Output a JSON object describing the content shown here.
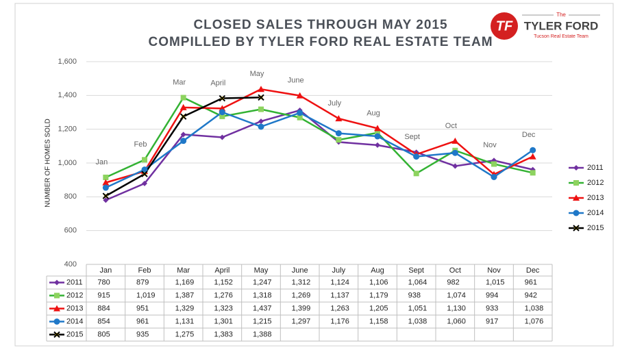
{
  "chart_data": {
    "type": "line",
    "title": "CLOSED SALES THROUGH MAY 2015",
    "subtitle": "COMPILLED BY TYLER FORD REAL ESTATE TEAM",
    "ylabel": "NUMBER OF HOMES SOLD",
    "categories": [
      "Jan",
      "Feb",
      "Mar",
      "April",
      "May",
      "June",
      "July",
      "Aug",
      "Sept",
      "Oct",
      "Nov",
      "Dec"
    ],
    "ylim": [
      400,
      1600
    ],
    "yticks": [
      400,
      600,
      800,
      {
        "value": 1000,
        "label": "1,000"
      },
      {
        "value": 1200,
        "label": "1,200"
      },
      {
        "value": 1400,
        "label": "1,400"
      },
      {
        "value": 1600,
        "label": "1,600"
      }
    ],
    "grid": true,
    "legend": "right",
    "series": [
      {
        "name": "2011",
        "color": "#7030a0",
        "marker": "diamond",
        "values": [
          780,
          879,
          1169,
          1152,
          1247,
          1312,
          1124,
          1106,
          1064,
          982,
          1015,
          961
        ],
        "value_labels": [
          "780",
          "879",
          "1,169",
          "1,152",
          "1,247",
          "1,312",
          "1,124",
          "1,106",
          "1,064",
          "982",
          "1,015",
          "961"
        ]
      },
      {
        "name": "2012",
        "color": "#33b233",
        "marker": "square",
        "values": [
          915,
          1019,
          1387,
          1276,
          1318,
          1269,
          1137,
          1179,
          938,
          1074,
          994,
          942
        ],
        "value_labels": [
          "915",
          "1,019",
          "1,387",
          "1,276",
          "1,318",
          "1,269",
          "1,137",
          "1,179",
          "938",
          "1,074",
          "994",
          "942"
        ]
      },
      {
        "name": "2013",
        "color": "#ee1111",
        "marker": "triangle",
        "values": [
          884,
          951,
          1329,
          1323,
          1437,
          1399,
          1263,
          1205,
          1051,
          1130,
          933,
          1038
        ],
        "value_labels": [
          "884",
          "951",
          "1,329",
          "1,323",
          "1,437",
          "1,399",
          "1,263",
          "1,205",
          "1,051",
          "1,130",
          "933",
          "1,038"
        ]
      },
      {
        "name": "2014",
        "color": "#1f78c8",
        "marker": "circle",
        "values": [
          854,
          961,
          1131,
          1301,
          1215,
          1297,
          1176,
          1158,
          1038,
          1060,
          917,
          1076
        ],
        "value_labels": [
          "854",
          "961",
          "1,131",
          "1,301",
          "1,215",
          "1,297",
          "1,176",
          "1,158",
          "1,038",
          "1,060",
          "917",
          "1,076"
        ]
      },
      {
        "name": "2015",
        "color": "#000000",
        "marker": "x",
        "values": [
          805,
          935,
          1275,
          1383,
          1388,
          null,
          null,
          null,
          null,
          null,
          null,
          null
        ],
        "value_labels": [
          "805",
          "935",
          "1,275",
          "1,383",
          "1,388",
          null,
          null,
          null,
          null,
          null,
          null,
          null
        ]
      }
    ]
  },
  "logo": {
    "initials": "TF",
    "the": "The",
    "name": "TYLER FORD",
    "tagline": "Tucson Real Estate Team"
  }
}
